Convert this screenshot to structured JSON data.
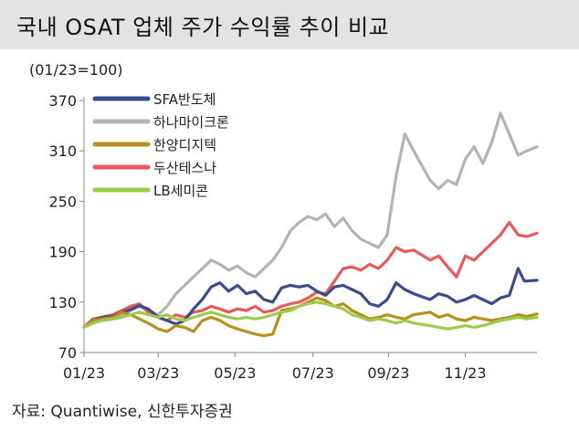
{
  "header": {
    "title": "국내 OSAT 업체 주가 수익률 추이 비교"
  },
  "source": "자료: Quantiwise, 신한투자증권",
  "chart_data": {
    "type": "line",
    "title": "국내 OSAT 업체 주가 수익률 추이 비교",
    "unit_label": "(01/23=100)",
    "xlabel": "",
    "ylabel": "",
    "ylim": [
      70,
      370
    ],
    "yticks": [
      "370",
      "310",
      "250",
      "190",
      "130",
      "70"
    ],
    "x_start": "2023-01-02",
    "x_end": "2023-12-28",
    "xticks": [
      {
        "label": "01/23",
        "date": "2023-01-02"
      },
      {
        "label": "03/23",
        "date": "2023-03-02"
      },
      {
        "label": "05/23",
        "date": "2023-05-02"
      },
      {
        "label": "07/23",
        "date": "2023-07-03"
      },
      {
        "label": "09/23",
        "date": "2023-09-01"
      },
      {
        "label": "11/23",
        "date": "2023-11-01"
      }
    ],
    "grid": false,
    "legend_position": "top-left",
    "series": [
      {
        "name": "SFA반도체",
        "color": "#3a4c8c",
        "points": [
          [
            "2023-01-02",
            100
          ],
          [
            "2023-01-09",
            108
          ],
          [
            "2023-01-16",
            112
          ],
          [
            "2023-01-25",
            113
          ],
          [
            "2023-02-01",
            118
          ],
          [
            "2023-02-08",
            121
          ],
          [
            "2023-02-15",
            126
          ],
          [
            "2023-02-22",
            122
          ],
          [
            "2023-03-02",
            112
          ],
          [
            "2023-03-09",
            108
          ],
          [
            "2023-03-16",
            104
          ],
          [
            "2023-03-23",
            108
          ],
          [
            "2023-03-30",
            122
          ],
          [
            "2023-04-06",
            133
          ],
          [
            "2023-04-13",
            148
          ],
          [
            "2023-04-20",
            153
          ],
          [
            "2023-04-27",
            143
          ],
          [
            "2023-05-04",
            150
          ],
          [
            "2023-05-11",
            140
          ],
          [
            "2023-05-18",
            143
          ],
          [
            "2023-05-25",
            133
          ],
          [
            "2023-06-01",
            130
          ],
          [
            "2023-06-08",
            147
          ],
          [
            "2023-06-15",
            150
          ],
          [
            "2023-06-22",
            148
          ],
          [
            "2023-06-29",
            150
          ],
          [
            "2023-07-06",
            143
          ],
          [
            "2023-07-13",
            138
          ],
          [
            "2023-07-20",
            148
          ],
          [
            "2023-07-27",
            150
          ],
          [
            "2023-08-03",
            145
          ],
          [
            "2023-08-10",
            140
          ],
          [
            "2023-08-17",
            128
          ],
          [
            "2023-08-24",
            125
          ],
          [
            "2023-08-31",
            133
          ],
          [
            "2023-09-07",
            153
          ],
          [
            "2023-09-14",
            145
          ],
          [
            "2023-09-21",
            140
          ],
          [
            "2023-10-04",
            133
          ],
          [
            "2023-10-11",
            140
          ],
          [
            "2023-10-18",
            137
          ],
          [
            "2023-10-25",
            130
          ],
          [
            "2023-11-01",
            133
          ],
          [
            "2023-11-08",
            138
          ],
          [
            "2023-11-15",
            133
          ],
          [
            "2023-11-22",
            128
          ],
          [
            "2023-11-29",
            135
          ],
          [
            "2023-12-06",
            138
          ],
          [
            "2023-12-13",
            170
          ],
          [
            "2023-12-18",
            155
          ],
          [
            "2023-12-28",
            156
          ]
        ]
      },
      {
        "name": "하나마이크론",
        "color": "#b3b3b3",
        "points": [
          [
            "2023-01-02",
            100
          ],
          [
            "2023-01-09",
            105
          ],
          [
            "2023-01-16",
            108
          ],
          [
            "2023-01-25",
            110
          ],
          [
            "2023-02-01",
            115
          ],
          [
            "2023-02-08",
            120
          ],
          [
            "2023-02-15",
            125
          ],
          [
            "2023-02-22",
            120
          ],
          [
            "2023-03-02",
            115
          ],
          [
            "2023-03-09",
            125
          ],
          [
            "2023-03-16",
            140
          ],
          [
            "2023-03-23",
            150
          ],
          [
            "2023-03-30",
            160
          ],
          [
            "2023-04-06",
            170
          ],
          [
            "2023-04-13",
            180
          ],
          [
            "2023-04-20",
            175
          ],
          [
            "2023-04-27",
            168
          ],
          [
            "2023-05-04",
            173
          ],
          [
            "2023-05-11",
            165
          ],
          [
            "2023-05-18",
            160
          ],
          [
            "2023-05-25",
            170
          ],
          [
            "2023-06-01",
            180
          ],
          [
            "2023-06-08",
            195
          ],
          [
            "2023-06-15",
            215
          ],
          [
            "2023-06-22",
            225
          ],
          [
            "2023-06-29",
            232
          ],
          [
            "2023-07-06",
            228
          ],
          [
            "2023-07-13",
            235
          ],
          [
            "2023-07-20",
            220
          ],
          [
            "2023-07-27",
            230
          ],
          [
            "2023-08-03",
            215
          ],
          [
            "2023-08-10",
            205
          ],
          [
            "2023-08-17",
            200
          ],
          [
            "2023-08-24",
            195
          ],
          [
            "2023-08-31",
            210
          ],
          [
            "2023-09-07",
            280
          ],
          [
            "2023-09-14",
            330
          ],
          [
            "2023-09-21",
            310
          ],
          [
            "2023-10-04",
            275
          ],
          [
            "2023-10-11",
            265
          ],
          [
            "2023-10-18",
            275
          ],
          [
            "2023-10-25",
            270
          ],
          [
            "2023-11-01",
            300
          ],
          [
            "2023-11-08",
            315
          ],
          [
            "2023-11-15",
            295
          ],
          [
            "2023-11-22",
            320
          ],
          [
            "2023-11-29",
            355
          ],
          [
            "2023-12-06",
            330
          ],
          [
            "2023-12-13",
            305
          ],
          [
            "2023-12-20",
            310
          ],
          [
            "2023-12-28",
            315
          ]
        ]
      },
      {
        "name": "한양디지텍",
        "color": "#b8901e",
        "points": [
          [
            "2023-01-02",
            100
          ],
          [
            "2023-01-09",
            108
          ],
          [
            "2023-01-16",
            110
          ],
          [
            "2023-01-25",
            112
          ],
          [
            "2023-02-01",
            118
          ],
          [
            "2023-02-08",
            115
          ],
          [
            "2023-02-15",
            110
          ],
          [
            "2023-02-22",
            105
          ],
          [
            "2023-03-02",
            98
          ],
          [
            "2023-03-09",
            95
          ],
          [
            "2023-03-16",
            102
          ],
          [
            "2023-03-23",
            100
          ],
          [
            "2023-03-30",
            95
          ],
          [
            "2023-04-06",
            108
          ],
          [
            "2023-04-13",
            112
          ],
          [
            "2023-04-20",
            108
          ],
          [
            "2023-04-27",
            102
          ],
          [
            "2023-05-04",
            98
          ],
          [
            "2023-05-11",
            95
          ],
          [
            "2023-05-18",
            92
          ],
          [
            "2023-05-25",
            90
          ],
          [
            "2023-06-01",
            92
          ],
          [
            "2023-06-08",
            120
          ],
          [
            "2023-06-15",
            122
          ],
          [
            "2023-06-22",
            125
          ],
          [
            "2023-06-29",
            130
          ],
          [
            "2023-07-06",
            135
          ],
          [
            "2023-07-13",
            132
          ],
          [
            "2023-07-20",
            125
          ],
          [
            "2023-07-27",
            128
          ],
          [
            "2023-08-03",
            120
          ],
          [
            "2023-08-10",
            115
          ],
          [
            "2023-08-17",
            110
          ],
          [
            "2023-08-24",
            112
          ],
          [
            "2023-08-31",
            115
          ],
          [
            "2023-09-07",
            112
          ],
          [
            "2023-09-14",
            110
          ],
          [
            "2023-09-21",
            115
          ],
          [
            "2023-10-04",
            118
          ],
          [
            "2023-10-11",
            112
          ],
          [
            "2023-10-18",
            115
          ],
          [
            "2023-10-25",
            110
          ],
          [
            "2023-11-01",
            108
          ],
          [
            "2023-11-08",
            112
          ],
          [
            "2023-11-15",
            110
          ],
          [
            "2023-11-22",
            108
          ],
          [
            "2023-11-29",
            110
          ],
          [
            "2023-12-06",
            112
          ],
          [
            "2023-12-13",
            115
          ],
          [
            "2023-12-20",
            113
          ],
          [
            "2023-12-28",
            116
          ]
        ]
      },
      {
        "name": "두산테스나",
        "color": "#e85a5a",
        "points": [
          [
            "2023-01-02",
            100
          ],
          [
            "2023-01-09",
            110
          ],
          [
            "2023-01-16",
            112
          ],
          [
            "2023-01-25",
            115
          ],
          [
            "2023-02-01",
            120
          ],
          [
            "2023-02-08",
            125
          ],
          [
            "2023-02-15",
            128
          ],
          [
            "2023-02-22",
            118
          ],
          [
            "2023-03-02",
            112
          ],
          [
            "2023-03-09",
            108
          ],
          [
            "2023-03-16",
            115
          ],
          [
            "2023-03-23",
            112
          ],
          [
            "2023-03-30",
            118
          ],
          [
            "2023-04-06",
            120
          ],
          [
            "2023-04-13",
            125
          ],
          [
            "2023-04-20",
            122
          ],
          [
            "2023-04-27",
            118
          ],
          [
            "2023-05-04",
            122
          ],
          [
            "2023-05-11",
            120
          ],
          [
            "2023-05-18",
            125
          ],
          [
            "2023-05-25",
            118
          ],
          [
            "2023-06-01",
            120
          ],
          [
            "2023-06-08",
            125
          ],
          [
            "2023-06-15",
            128
          ],
          [
            "2023-06-22",
            130
          ],
          [
            "2023-06-29",
            135
          ],
          [
            "2023-07-06",
            142
          ],
          [
            "2023-07-13",
            140
          ],
          [
            "2023-07-20",
            155
          ],
          [
            "2023-07-27",
            170
          ],
          [
            "2023-08-03",
            172
          ],
          [
            "2023-08-10",
            168
          ],
          [
            "2023-08-17",
            175
          ],
          [
            "2023-08-24",
            170
          ],
          [
            "2023-08-31",
            180
          ],
          [
            "2023-09-07",
            195
          ],
          [
            "2023-09-14",
            190
          ],
          [
            "2023-09-21",
            192
          ],
          [
            "2023-10-04",
            180
          ],
          [
            "2023-10-11",
            185
          ],
          [
            "2023-10-18",
            172
          ],
          [
            "2023-10-25",
            160
          ],
          [
            "2023-11-01",
            185
          ],
          [
            "2023-11-08",
            180
          ],
          [
            "2023-11-15",
            190
          ],
          [
            "2023-11-22",
            200
          ],
          [
            "2023-11-29",
            210
          ],
          [
            "2023-12-06",
            225
          ],
          [
            "2023-12-13",
            210
          ],
          [
            "2023-12-20",
            208
          ],
          [
            "2023-12-28",
            212
          ]
        ]
      },
      {
        "name": "LB세미콘",
        "color": "#9ccc4e",
        "points": [
          [
            "2023-01-02",
            100
          ],
          [
            "2023-01-09",
            105
          ],
          [
            "2023-01-16",
            108
          ],
          [
            "2023-01-25",
            110
          ],
          [
            "2023-02-01",
            112
          ],
          [
            "2023-02-08",
            115
          ],
          [
            "2023-02-15",
            118
          ],
          [
            "2023-02-22",
            115
          ],
          [
            "2023-03-02",
            112
          ],
          [
            "2023-03-09",
            115
          ],
          [
            "2023-03-16",
            110
          ],
          [
            "2023-03-23",
            108
          ],
          [
            "2023-03-30",
            112
          ],
          [
            "2023-04-06",
            115
          ],
          [
            "2023-04-13",
            118
          ],
          [
            "2023-04-20",
            115
          ],
          [
            "2023-04-27",
            112
          ],
          [
            "2023-05-04",
            110
          ],
          [
            "2023-05-11",
            112
          ],
          [
            "2023-05-18",
            110
          ],
          [
            "2023-05-25",
            112
          ],
          [
            "2023-06-01",
            115
          ],
          [
            "2023-06-08",
            118
          ],
          [
            "2023-06-15",
            120
          ],
          [
            "2023-06-22",
            125
          ],
          [
            "2023-06-29",
            128
          ],
          [
            "2023-07-06",
            130
          ],
          [
            "2023-07-13",
            128
          ],
          [
            "2023-07-20",
            125
          ],
          [
            "2023-07-27",
            122
          ],
          [
            "2023-08-03",
            115
          ],
          [
            "2023-08-10",
            112
          ],
          [
            "2023-08-17",
            108
          ],
          [
            "2023-08-24",
            110
          ],
          [
            "2023-08-31",
            108
          ],
          [
            "2023-09-07",
            105
          ],
          [
            "2023-09-14",
            108
          ],
          [
            "2023-09-21",
            105
          ],
          [
            "2023-10-04",
            102
          ],
          [
            "2023-10-11",
            100
          ],
          [
            "2023-10-18",
            98
          ],
          [
            "2023-10-25",
            100
          ],
          [
            "2023-11-01",
            102
          ],
          [
            "2023-11-08",
            100
          ],
          [
            "2023-11-15",
            102
          ],
          [
            "2023-11-22",
            105
          ],
          [
            "2023-11-29",
            108
          ],
          [
            "2023-12-06",
            110
          ],
          [
            "2023-12-13",
            112
          ],
          [
            "2023-12-20",
            110
          ],
          [
            "2023-12-28",
            112
          ]
        ]
      }
    ]
  }
}
